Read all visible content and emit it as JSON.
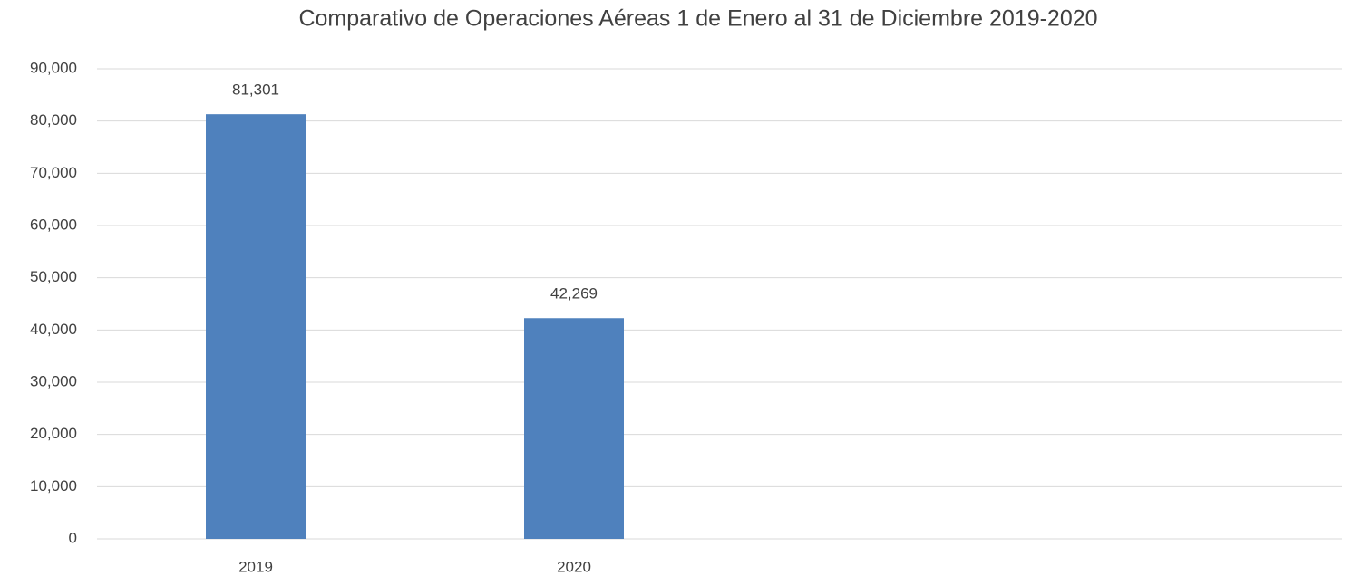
{
  "chart_data": {
    "type": "bar",
    "title": "Comparativo de Operaciones Aéreas 1 de Enero al 31 de Diciembre 2019-2020",
    "categories": [
      "2019",
      "2020",
      null,
      null
    ],
    "values": [
      81301,
      42269,
      null,
      null
    ],
    "value_labels": [
      "81,301",
      "42,269",
      null,
      null
    ],
    "color": "#4f81bd",
    "ylim": [
      0,
      90000
    ],
    "yticks": [
      0,
      {
        "value": 10000,
        "label": "10,000"
      },
      {
        "value": 20000,
        "label": "20,000"
      },
      {
        "value": 30000,
        "label": "30,000"
      },
      {
        "value": 40000,
        "label": "40,000"
      },
      {
        "value": 50000,
        "label": "50,000"
      },
      {
        "value": 60000,
        "label": "60,000"
      },
      {
        "value": 70000,
        "label": "70,000"
      },
      {
        "value": 80000,
        "label": "80,000"
      },
      {
        "value": 90000,
        "label": "90,000"
      }
    ],
    "grid": true
  }
}
